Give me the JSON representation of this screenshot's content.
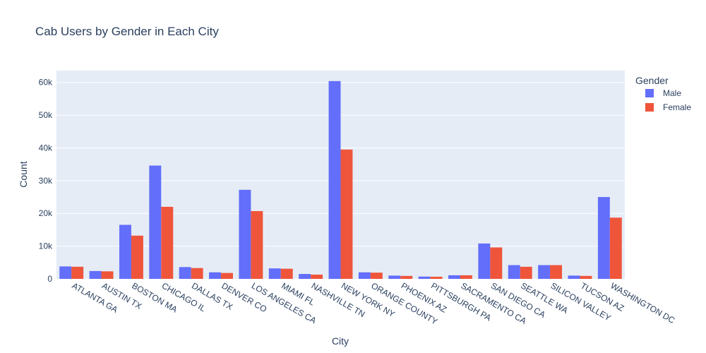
{
  "chart_data": {
    "type": "bar",
    "barmode": "group",
    "title": "Cab Users by Gender in Each City",
    "xlabel": "City",
    "ylabel": "Count",
    "ylim": [
      0,
      63600
    ],
    "yticks": [
      0,
      10000,
      20000,
      30000,
      40000,
      50000,
      60000
    ],
    "ytick_labels": [
      "0",
      "10k",
      "20k",
      "30k",
      "40k",
      "50k",
      "60k"
    ],
    "legend_title": "Gender",
    "legend_position": "right",
    "categories": [
      "ATLANTA GA",
      "AUSTIN TX",
      "BOSTON MA",
      "CHICAGO IL",
      "DALLAS TX",
      "DENVER CO",
      "LOS ANGELES CA",
      "MIAMI FL",
      "NASHVILLE TN",
      "NEW YORK NY",
      "ORANGE COUNTY",
      "PHOENIX AZ",
      "PITTSBURGH PA",
      "SACRAMENTO CA",
      "SAN DIEGO CA",
      "SEATTLE WA",
      "SILICON VALLEY",
      "TUCSON AZ",
      "WASHINGTON DC"
    ],
    "series": [
      {
        "name": "Male",
        "color": "#636efa",
        "values": [
          3800,
          2400,
          16500,
          34600,
          3600,
          2000,
          27200,
          3200,
          1500,
          60400,
          2000,
          1000,
          700,
          1100,
          10800,
          4200,
          4200,
          1000,
          25000
        ]
      },
      {
        "name": "Female",
        "color": "#ef553b",
        "values": [
          3700,
          2300,
          13200,
          22000,
          3300,
          1800,
          20700,
          3100,
          1300,
          39500,
          1900,
          900,
          650,
          1100,
          9600,
          3700,
          4200,
          900,
          18700
        ]
      }
    ],
    "grid": true,
    "plot_bgcolor": "#e5ecf6"
  }
}
